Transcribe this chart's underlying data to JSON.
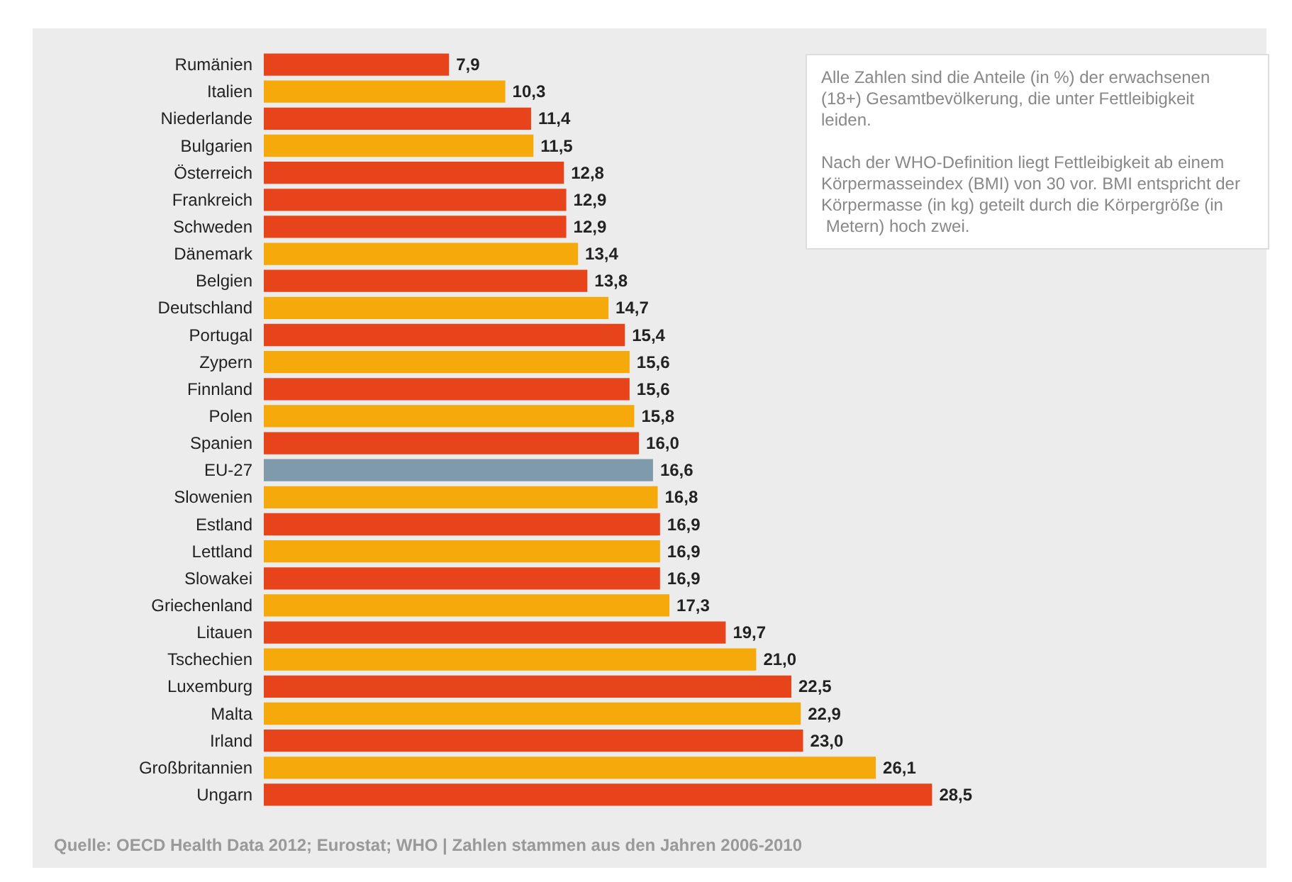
{
  "chart_data": {
    "type": "bar",
    "orientation": "horizontal",
    "tick_labels": "y",
    "categories": [
      "Rumänien",
      "Italien",
      "Niederlande",
      "Bulgarien",
      "Österreich",
      "Frankreich",
      "Schweden",
      "Dänemark",
      "Belgien",
      "Deutschland",
      "Portugal",
      "Zypern",
      "Finnland",
      "Polen",
      "Spanien",
      "EU-27",
      "Slowenien",
      "Estland",
      "Lettland",
      "Slowakei",
      "Griechenland",
      "Litauen",
      "Tschechien",
      "Luxemburg",
      "Malta",
      "Irland",
      "Großbritannien",
      "Ungarn"
    ],
    "values": [
      7.9,
      10.3,
      11.4,
      11.5,
      12.8,
      12.9,
      12.9,
      13.4,
      13.8,
      14.7,
      15.4,
      15.6,
      15.6,
      15.8,
      16.0,
      16.6,
      16.8,
      16.9,
      16.9,
      16.9,
      17.3,
      19.7,
      21.0,
      22.5,
      22.9,
      23.0,
      26.1,
      28.5
    ],
    "value_labels": [
      "7,9",
      "10,3",
      "11,4",
      "11,5",
      "12,8",
      "12,9",
      "12,9",
      "13,4",
      "13,8",
      "14,7",
      "15,4",
      "15,6",
      "15,6",
      "15,8",
      "16,0",
      "16,6",
      "16,8",
      "16,9",
      "16,9",
      "16,9",
      "17,3",
      "19,7",
      "21,0",
      "22,5",
      "22,9",
      "23,0",
      "26,1",
      "28,5"
    ],
    "colors": [
      "#e8441c",
      "#f5a90a",
      "#e8441c",
      "#f5a90a",
      "#e8441c",
      "#e8441c",
      "#e8441c",
      "#f5a90a",
      "#e8441c",
      "#f5a90a",
      "#e8441c",
      "#f5a90a",
      "#e8441c",
      "#f5a90a",
      "#e8441c",
      "#7f9aab",
      "#f5a90a",
      "#e8441c",
      "#f5a90a",
      "#e8441c",
      "#f5a90a",
      "#e8441c",
      "#f5a90a",
      "#e8441c",
      "#f5a90a",
      "#e8441c",
      "#f5a90a",
      "#e8441c"
    ],
    "annotations": [
      "Alle Zahlen sind die Anteile (in %) der erwachsenen (18+) Gesamtbevölkerung, die unter Fettleibigkeit leiden.",
      "Nach der WHO-Definition liegt Fettleibigkeit ab einem Körpermasseindex (BMI) von 30 vor. BMI entspricht der Körpermasse (in kg) geteilt durch die Körpergröße (in Metern) hoch zwei.",
      "Quelle: OECD Health Data 2012; Eurostat; WHO | Zahlen stammen aus den Jahren 2006-2010"
    ]
  }
}
